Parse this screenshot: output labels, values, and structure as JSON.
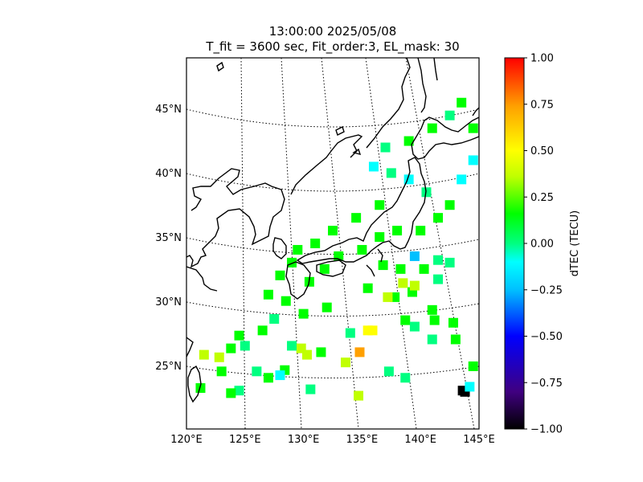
{
  "title": {
    "line1": "13:00:00 2025/05/08",
    "line2": "T_fit = 3600 sec, Fit_order:3, EL_mask: 30"
  },
  "map": {
    "lon_labels": [
      "120°E",
      "125°E",
      "130°E",
      "135°E",
      "140°E",
      "145°E"
    ],
    "lat_labels": [
      "25°N",
      "30°N",
      "35°N",
      "40°N",
      "45°N"
    ],
    "lon_range": [
      120,
      145
    ],
    "lat_range": [
      20,
      49
    ],
    "graticule_style": "dotted"
  },
  "colorbar": {
    "label": "dTEC (TECU)",
    "range": [
      -1.0,
      1.0
    ],
    "ticks": [
      "1.00",
      "0.75",
      "0.50",
      "0.25",
      "0.00",
      "−0.25",
      "−0.50",
      "−0.75",
      "−1.00"
    ],
    "colormap": [
      "#000000",
      "#400080",
      "#0000ff",
      "#00c0ff",
      "#00ffff",
      "#00ff80",
      "#00ff00",
      "#c0ff00",
      "#ffff00",
      "#ffa000",
      "#ff0000"
    ]
  },
  "chart_data": {
    "type": "heatmap",
    "note_units": "dTEC in TECU at lon/lat grid points",
    "points": [
      {
        "lon": 143.8,
        "lat": 22.9,
        "v": -1.0
      },
      {
        "lon": 143.6,
        "lat": 23.0,
        "v": -0.95
      },
      {
        "lon": 144.2,
        "lat": 23.3,
        "v": -0.3
      },
      {
        "lon": 144.5,
        "lat": 24.9,
        "v": 0.15
      },
      {
        "lon": 135.5,
        "lat": 27.7,
        "v": 0.55
      },
      {
        "lon": 135.9,
        "lat": 27.7,
        "v": 0.5
      },
      {
        "lon": 134.8,
        "lat": 26.0,
        "v": 0.7
      },
      {
        "lon": 134.0,
        "lat": 27.5,
        "v": -0.05
      },
      {
        "lon": 133.6,
        "lat": 25.2,
        "v": 0.35
      },
      {
        "lon": 131.5,
        "lat": 26.0,
        "v": 0.1
      },
      {
        "lon": 130.3,
        "lat": 25.8,
        "v": 0.35
      },
      {
        "lon": 129.8,
        "lat": 26.3,
        "v": 0.4
      },
      {
        "lon": 129.0,
        "lat": 26.5,
        "v": 0.0
      },
      {
        "lon": 128.4,
        "lat": 24.6,
        "v": 0.2
      },
      {
        "lon": 128.0,
        "lat": 24.2,
        "v": -0.2
      },
      {
        "lon": 127.0,
        "lat": 24.0,
        "v": 0.1
      },
      {
        "lon": 126.0,
        "lat": 24.5,
        "v": 0.05
      },
      {
        "lon": 124.5,
        "lat": 23.0,
        "v": 0.05
      },
      {
        "lon": 123.8,
        "lat": 22.8,
        "v": 0.1
      },
      {
        "lon": 123.0,
        "lat": 24.5,
        "v": 0.2
      },
      {
        "lon": 122.8,
        "lat": 25.6,
        "v": 0.35
      },
      {
        "lon": 121.2,
        "lat": 23.2,
        "v": 0.1
      },
      {
        "lon": 121.5,
        "lat": 25.8,
        "v": 0.3
      },
      {
        "lon": 123.8,
        "lat": 26.3,
        "v": 0.1
      },
      {
        "lon": 125.0,
        "lat": 26.5,
        "v": -0.05
      },
      {
        "lon": 124.5,
        "lat": 27.3,
        "v": 0.1
      },
      {
        "lon": 126.5,
        "lat": 27.7,
        "v": 0.1
      },
      {
        "lon": 127.5,
        "lat": 28.6,
        "v": 0.05
      },
      {
        "lon": 130.6,
        "lat": 23.1,
        "v": 0.05
      },
      {
        "lon": 134.7,
        "lat": 22.6,
        "v": 0.3
      },
      {
        "lon": 137.3,
        "lat": 24.5,
        "v": 0.05
      },
      {
        "lon": 138.7,
        "lat": 24.0,
        "v": 0.05
      },
      {
        "lon": 138.7,
        "lat": 28.5,
        "v": 0.1
      },
      {
        "lon": 139.5,
        "lat": 28.0,
        "v": 0.0
      },
      {
        "lon": 141.0,
        "lat": 27.0,
        "v": 0.05
      },
      {
        "lon": 141.2,
        "lat": 28.5,
        "v": 0.1
      },
      {
        "lon": 142.8,
        "lat": 28.3,
        "v": 0.1
      },
      {
        "lon": 143.0,
        "lat": 27.0,
        "v": 0.1
      },
      {
        "lon": 141.0,
        "lat": 29.3,
        "v": 0.1
      },
      {
        "lon": 137.8,
        "lat": 30.3,
        "v": 0.2
      },
      {
        "lon": 137.2,
        "lat": 30.3,
        "v": 0.3
      },
      {
        "lon": 139.3,
        "lat": 30.7,
        "v": 0.1
      },
      {
        "lon": 138.5,
        "lat": 31.4,
        "v": 0.45
      },
      {
        "lon": 139.5,
        "lat": 31.2,
        "v": 0.35
      },
      {
        "lon": 141.5,
        "lat": 31.7,
        "v": 0.0
      },
      {
        "lon": 141.5,
        "lat": 33.2,
        "v": -0.1
      },
      {
        "lon": 142.5,
        "lat": 33.0,
        "v": 0.0
      },
      {
        "lon": 139.5,
        "lat": 33.5,
        "v": -0.4
      },
      {
        "lon": 138.3,
        "lat": 32.5,
        "v": 0.2
      },
      {
        "lon": 136.8,
        "lat": 32.8,
        "v": 0.1
      },
      {
        "lon": 140.3,
        "lat": 32.5,
        "v": 0.1
      },
      {
        "lon": 135.5,
        "lat": 31.0,
        "v": 0.1
      },
      {
        "lon": 132.0,
        "lat": 29.5,
        "v": 0.2
      },
      {
        "lon": 130.0,
        "lat": 29.0,
        "v": 0.1
      },
      {
        "lon": 128.5,
        "lat": 30.0,
        "v": 0.2
      },
      {
        "lon": 127.0,
        "lat": 30.5,
        "v": 0.1
      },
      {
        "lon": 128.0,
        "lat": 32.0,
        "v": 0.15
      },
      {
        "lon": 129.0,
        "lat": 33.0,
        "v": 0.2
      },
      {
        "lon": 130.5,
        "lat": 31.5,
        "v": 0.1
      },
      {
        "lon": 131.8,
        "lat": 32.5,
        "v": 0.25
      },
      {
        "lon": 133.0,
        "lat": 33.5,
        "v": 0.15
      },
      {
        "lon": 135.0,
        "lat": 34.0,
        "v": 0.2
      },
      {
        "lon": 136.5,
        "lat": 35.0,
        "v": 0.1
      },
      {
        "lon": 138.0,
        "lat": 35.5,
        "v": 0.2
      },
      {
        "lon": 140.0,
        "lat": 35.5,
        "v": 0.1
      },
      {
        "lon": 141.5,
        "lat": 36.5,
        "v": 0.15
      },
      {
        "lon": 142.5,
        "lat": 37.5,
        "v": 0.2
      },
      {
        "lon": 140.5,
        "lat": 38.5,
        "v": -0.1
      },
      {
        "lon": 139.0,
        "lat": 39.5,
        "v": -0.15
      },
      {
        "lon": 137.5,
        "lat": 40.0,
        "v": -0.1
      },
      {
        "lon": 136.0,
        "lat": 40.5,
        "v": -0.2
      },
      {
        "lon": 137.0,
        "lat": 42.0,
        "v": 0.05
      },
      {
        "lon": 139.0,
        "lat": 42.5,
        "v": 0.1
      },
      {
        "lon": 141.0,
        "lat": 43.5,
        "v": 0.1
      },
      {
        "lon": 142.5,
        "lat": 44.5,
        "v": 0.05
      },
      {
        "lon": 143.5,
        "lat": 45.5,
        "v": 0.15
      },
      {
        "lon": 144.5,
        "lat": 43.5,
        "v": 0.2
      },
      {
        "lon": 144.5,
        "lat": 41.0,
        "v": -0.3
      },
      {
        "lon": 143.5,
        "lat": 39.5,
        "v": -0.25
      },
      {
        "lon": 136.5,
        "lat": 37.5,
        "v": 0.1
      },
      {
        "lon": 134.5,
        "lat": 36.5,
        "v": 0.15
      },
      {
        "lon": 132.5,
        "lat": 35.5,
        "v": 0.1
      },
      {
        "lon": 131.0,
        "lat": 34.5,
        "v": 0.2
      },
      {
        "lon": 129.5,
        "lat": 34.0,
        "v": 0.1
      }
    ]
  }
}
